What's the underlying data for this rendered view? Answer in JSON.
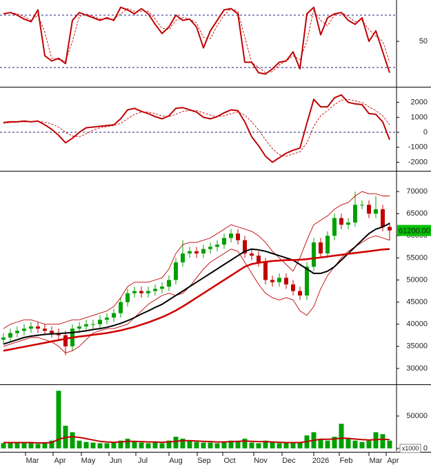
{
  "chart_data": [
    {
      "type": "line",
      "ylim": [
        15.8,
        81.6
      ],
      "yticks": [
        50
      ],
      "hlines": [
        30,
        70
      ],
      "hline_color": "#1a1a80",
      "series": [
        {
          "color": "#c00000",
          "style": "bold",
          "values": [
            71,
            72,
            70,
            67,
            65,
            74,
            39,
            35,
            37,
            33,
            66,
            72,
            70,
            68,
            66,
            68,
            66,
            76,
            74,
            71,
            75,
            71,
            63,
            56,
            61,
            70,
            66,
            67,
            61,
            45,
            58,
            66,
            74,
            75,
            71,
            34,
            34,
            26,
            25,
            29,
            34,
            35,
            42,
            29,
            71,
            76,
            55,
            68,
            71,
            72,
            66,
            63,
            68,
            50,
            58,
            42,
            26
          ]
        },
        {
          "color": "#c00000",
          "style": "dashed",
          "values": [
            71,
            72,
            71,
            69,
            66,
            70,
            57,
            37,
            36,
            35,
            50,
            69,
            71,
            69,
            67,
            67,
            67,
            71,
            75,
            73,
            73,
            73,
            67,
            60,
            59,
            66,
            68,
            67,
            64,
            53,
            52,
            62,
            70,
            75,
            73,
            53,
            34,
            30,
            26,
            27,
            32,
            35,
            39,
            36,
            50,
            74,
            66,
            62,
            70,
            72,
            69,
            65,
            66,
            59,
            54,
            50,
            34
          ]
        }
      ]
    },
    {
      "type": "line",
      "ylim": [
        -2530,
        2950
      ],
      "yticks": [
        2000,
        1000,
        0,
        -1000,
        -2000
      ],
      "hlines": [
        0
      ],
      "hline_color": "#1a1a80",
      "series": [
        {
          "color": "#c00000",
          "style": "bold",
          "values": [
            650,
            700,
            700,
            750,
            700,
            750,
            500,
            200,
            -200,
            -700,
            -400,
            0,
            300,
            350,
            400,
            450,
            500,
            900,
            1500,
            1600,
            1400,
            1250,
            1050,
            900,
            1100,
            1600,
            1650,
            1500,
            1350,
            1000,
            900,
            1050,
            1300,
            1500,
            1450,
            700,
            -300,
            -900,
            -1600,
            -2000,
            -1700,
            -1400,
            -1200,
            -1050,
            600,
            2200,
            1700,
            1700,
            2300,
            2500,
            2000,
            1900,
            1850,
            1250,
            1200,
            700,
            -500
          ]
        },
        {
          "color": "#c00000",
          "style": "dashed",
          "values": [
            600,
            650,
            680,
            700,
            720,
            730,
            680,
            550,
            350,
            0,
            -250,
            -300,
            -100,
            150,
            300,
            380,
            450,
            600,
            900,
            1200,
            1350,
            1350,
            1250,
            1100,
            1050,
            1200,
            1400,
            1450,
            1450,
            1300,
            1150,
            1050,
            1100,
            1250,
            1350,
            1150,
            700,
            150,
            -500,
            -1100,
            -1500,
            -1600,
            -1450,
            -1300,
            -700,
            400,
            1100,
            1450,
            1850,
            2150,
            2200,
            2100,
            2000,
            1700,
            1450,
            1100,
            500
          ]
        }
      ]
    },
    {
      "type": "candlestick",
      "ylim": [
        26560,
        74375
      ],
      "yticks": [
        70000,
        65000,
        60000,
        55000,
        50000,
        45000,
        40000,
        35000,
        30000
      ],
      "up_color": "#00a000",
      "down_color": "#c00000",
      "open": [
        36500,
        37000,
        38000,
        38500,
        39000,
        39500,
        39000,
        38500,
        38000,
        37500,
        35000,
        39000,
        39500,
        40000,
        40000,
        41000,
        41500,
        42500,
        45000,
        47000,
        47500,
        47000,
        47500,
        48000,
        48500,
        50000,
        54000,
        56000,
        56500,
        56000,
        57000,
        57500,
        58000,
        59500,
        60500,
        59000,
        56000,
        55500,
        54000,
        50000,
        49500,
        50500,
        49000,
        47500,
        46500,
        53000,
        58500,
        56000,
        60000,
        64000,
        62500,
        63000,
        67000,
        67000,
        65000,
        66000,
        62000
      ],
      "high": [
        38000,
        39000,
        39500,
        40000,
        40500,
        40500,
        40000,
        39500,
        39000,
        38500,
        40000,
        40500,
        41000,
        41000,
        42000,
        42500,
        43500,
        46000,
        48000,
        48500,
        48500,
        48500,
        49000,
        49500,
        51000,
        55000,
        59000,
        57500,
        57500,
        58000,
        58500,
        59000,
        60500,
        61500,
        61500,
        60000,
        57000,
        56500,
        55000,
        51000,
        51500,
        51500,
        50000,
        48500,
        54000,
        59500,
        59500,
        61000,
        65000,
        65000,
        64000,
        70000,
        68000,
        68000,
        69000,
        67000,
        63000
      ],
      "low": [
        35500,
        36000,
        37000,
        37500,
        38000,
        38000,
        37500,
        37000,
        36500,
        33000,
        34000,
        38000,
        38500,
        39000,
        39000,
        40000,
        40500,
        41500,
        44000,
        46000,
        46000,
        46000,
        46500,
        47000,
        47500,
        49000,
        53000,
        55000,
        55000,
        55000,
        56000,
        56500,
        57000,
        58500,
        58000,
        55000,
        54500,
        53000,
        49000,
        48500,
        48500,
        48000,
        46500,
        45500,
        45500,
        52000,
        55000,
        55000,
        59000,
        61500,
        61500,
        62000,
        66000,
        64000,
        64000,
        61000,
        59000
      ],
      "close": [
        37000,
        38000,
        38500,
        39000,
        39500,
        39000,
        38500,
        38000,
        37500,
        35000,
        39000,
        39500,
        40000,
        40000,
        41000,
        41500,
        42500,
        45000,
        47000,
        47500,
        47000,
        47500,
        48000,
        48500,
        50000,
        54000,
        56000,
        56500,
        56000,
        57000,
        57500,
        58000,
        59500,
        60500,
        59000,
        56000,
        55500,
        54000,
        50000,
        49500,
        50500,
        49000,
        47500,
        46500,
        53000,
        58500,
        56000,
        60000,
        64000,
        62500,
        63000,
        67000,
        67000,
        65000,
        66000,
        62000,
        61200
      ],
      "series": [
        {
          "color": "#c00000",
          "style": "thin",
          "values": [
            39000,
            40000,
            40500,
            41000,
            41000,
            40500,
            40000,
            40000,
            40000,
            40500,
            41000,
            41000,
            41500,
            42000,
            42500,
            43000,
            44000,
            46000,
            48500,
            49500,
            49500,
            49500,
            50000,
            50500,
            52500,
            56000,
            58000,
            58500,
            58500,
            59000,
            59500,
            60500,
            61500,
            62500,
            62000,
            61500,
            61000,
            60000,
            58500,
            56500,
            55000,
            53500,
            52000,
            55000,
            59000,
            62500,
            63500,
            64500,
            66000,
            67000,
            67500,
            69000,
            70000,
            69500,
            69500,
            69000,
            69000
          ]
        },
        {
          "color": "#c00000",
          "style": "thin",
          "values": [
            35000,
            35500,
            36000,
            36500,
            37000,
            37000,
            36500,
            36000,
            35000,
            33500,
            34000,
            35000,
            36500,
            38000,
            38500,
            39000,
            39000,
            39500,
            40000,
            41500,
            43000,
            44500,
            45500,
            46500,
            47000,
            46500,
            47000,
            48500,
            50500,
            52500,
            54000,
            55000,
            56000,
            57000,
            56500,
            54000,
            51500,
            49000,
            47000,
            46000,
            45500,
            46000,
            45500,
            43000,
            42000,
            44000,
            48000,
            51000,
            53000,
            55000,
            56500,
            57500,
            58500,
            59500,
            60000,
            59500,
            59000
          ]
        },
        {
          "color": "#000000",
          "style": "bold",
          "values": [
            35500,
            36000,
            36500,
            37000,
            37300,
            37500,
            37700,
            37800,
            37900,
            38000,
            38100,
            38300,
            38500,
            38800,
            39000,
            39300,
            39700,
            40200,
            40800,
            41500,
            42300,
            43000,
            43800,
            44500,
            45500,
            46500,
            47500,
            48500,
            49500,
            50500,
            51500,
            52500,
            53500,
            54500,
            55500,
            56500,
            57000,
            56800,
            56500,
            56000,
            55500,
            55000,
            54500,
            53500,
            52500,
            51500,
            51500,
            52000,
            53000,
            54500,
            56000,
            57500,
            59000,
            60500,
            61500,
            62000,
            62800
          ]
        },
        {
          "color": "#d00000",
          "style": "heavy",
          "values": [
            34000,
            34300,
            34600,
            34900,
            35200,
            35500,
            35800,
            36100,
            36400,
            36700,
            37000,
            37200,
            37400,
            37600,
            37800,
            38000,
            38300,
            38600,
            39000,
            39400,
            39900,
            40400,
            41000,
            41600,
            42300,
            43100,
            44000,
            45000,
            46000,
            47000,
            48000,
            49000,
            50000,
            51000,
            52000,
            53000,
            53600,
            53900,
            54100,
            54300,
            54400,
            54500,
            54500,
            54600,
            54700,
            54900,
            55100,
            55300,
            55500,
            55700,
            55900,
            56100,
            56300,
            56500,
            56700,
            56900,
            57000
          ]
        }
      ],
      "last_label": {
        "value": 61200,
        "label": "61200.00"
      },
      "last_label_color": "#00c000"
    },
    {
      "type": "bar",
      "ylim": [
        -4255,
        96800
      ],
      "yticks": [
        50000,
        0
      ],
      "unit_label": "x1000",
      "color": "#00a000",
      "x": [
        0,
        1,
        2,
        3,
        4,
        5,
        6,
        7,
        8,
        9,
        10,
        11,
        12,
        13,
        14,
        15,
        16,
        17,
        18,
        19,
        20,
        21,
        22,
        23,
        24,
        25,
        26,
        27,
        28,
        29,
        30,
        31,
        32,
        33,
        34,
        35,
        36,
        37,
        38,
        39,
        40,
        41,
        42,
        43,
        44,
        45,
        46,
        47,
        48,
        49,
        50,
        51,
        52,
        53,
        54,
        55,
        56
      ],
      "xlim": [
        -0.5,
        57
      ],
      "xticks": [
        {
          "value": 4.2,
          "label": "Mar"
        },
        {
          "value": 8.2,
          "label": "Apr"
        },
        {
          "value": 12.3,
          "label": "May"
        },
        {
          "value": 16.3,
          "label": "Jun"
        },
        {
          "value": 20.2,
          "label": "Jul"
        },
        {
          "value": 25.0,
          "label": "Aug"
        },
        {
          "value": 29.1,
          "label": "Sep"
        },
        {
          "value": 32.8,
          "label": "Oct"
        },
        {
          "value": 37.3,
          "label": "Nov"
        },
        {
          "value": 41.4,
          "label": "Dec"
        },
        {
          "value": 46.0,
          "label": "2026"
        },
        {
          "value": 49.7,
          "label": "Feb"
        },
        {
          "value": 54.0,
          "label": "Mar"
        },
        {
          "value": 56.5,
          "label": "Apr"
        }
      ],
      "values": [
        8000,
        9000,
        10000,
        8000,
        9000,
        7000,
        8000,
        12000,
        89000,
        35000,
        25000,
        12000,
        10000,
        9000,
        8000,
        8000,
        9000,
        12000,
        15000,
        10000,
        9000,
        8000,
        10000,
        8000,
        12000,
        18000,
        15000,
        12000,
        10000,
        9000,
        9000,
        8000,
        10000,
        12000,
        11000,
        15000,
        9000,
        8000,
        12000,
        10000,
        8000,
        9000,
        8000,
        9000,
        20000,
        25000,
        15000,
        12000,
        18000,
        38000,
        15000,
        12000,
        10000,
        12000,
        25000,
        22000,
        12000
      ],
      "series": [
        {
          "color": "#c00000",
          "style": "bold",
          "values": [
            9000,
            9000,
            9000,
            9000,
            9000,
            8500,
            8500,
            9000,
            14000,
            17000,
            18000,
            17000,
            15000,
            13000,
            11000,
            10000,
            9500,
            10000,
            11000,
            11000,
            10500,
            10000,
            10000,
            9500,
            10000,
            11000,
            12000,
            12000,
            11500,
            11000,
            10500,
            10000,
            10000,
            10500,
            11000,
            11500,
            11000,
            10500,
            10500,
            10000,
            9500,
            9000,
            9000,
            9000,
            10500,
            12500,
            14000,
            14000,
            14500,
            16000,
            15500,
            14500,
            13500,
            13000,
            13500,
            14000,
            13500
          ]
        }
      ]
    }
  ]
}
